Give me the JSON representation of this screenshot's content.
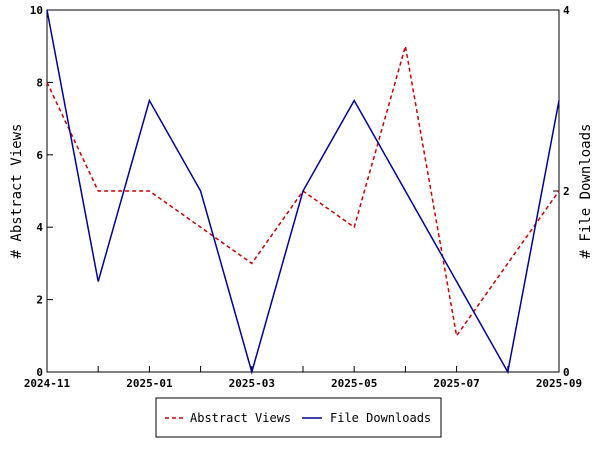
{
  "chart_data": {
    "type": "line",
    "x": [
      "2024-11",
      "2024-12",
      "2025-01",
      "2025-02",
      "2025-03",
      "2025-04",
      "2025-05",
      "2025-06",
      "2025-07",
      "2025-08",
      "2025-09"
    ],
    "x_tick_labels": [
      "2024-11",
      "2025-01",
      "2025-03",
      "2025-05",
      "2025-07",
      "2025-09"
    ],
    "series": [
      {
        "name": "Abstract Views",
        "axis": "left",
        "color": "#cc0000",
        "dash": "dashed",
        "values": [
          8,
          5,
          5,
          4,
          3,
          5,
          4,
          9,
          1,
          3,
          5
        ]
      },
      {
        "name": "File Downloads",
        "axis": "right",
        "color": "#000099",
        "dash": "solid",
        "values": [
          4,
          1,
          3,
          2,
          0,
          2,
          3,
          2,
          1,
          0,
          3
        ]
      }
    ],
    "ylabel": "# Abstract Views",
    "y2label": "# File Downloads",
    "ylim": [
      0,
      10
    ],
    "y_ticks": [
      "0",
      "2",
      "4",
      "6",
      "8",
      "10"
    ],
    "y2lim": [
      0,
      4
    ],
    "y2_ticks": [
      "0",
      "2",
      "4"
    ],
    "grid": false,
    "legend_position": "bottom"
  }
}
